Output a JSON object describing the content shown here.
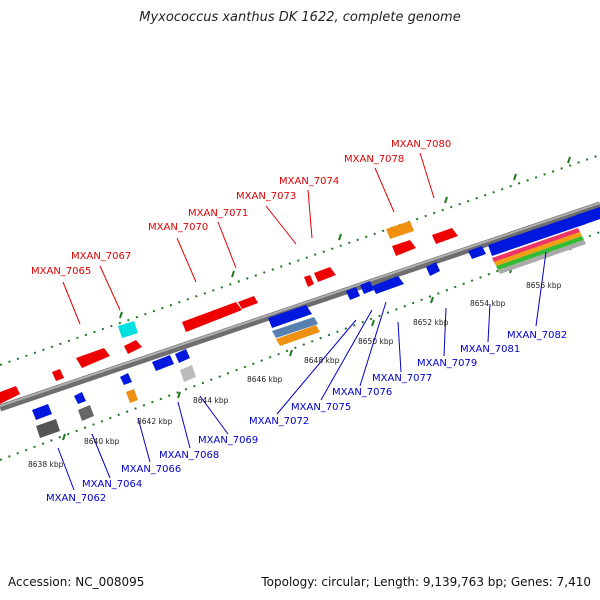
{
  "title": "Myxococcus xanthus DK 1622, complete genome",
  "footer": {
    "accession": "Accession: NC_008095",
    "topology": "Topology: circular; Length: 9,139,763 bp; Genes: 7,410"
  },
  "colors": {
    "top_label": "#e00000",
    "bottom_label": "#0000cc",
    "forward_gene": "#ee0000",
    "reverse_gene": "#0018dd",
    "backbone": "#8a8a8a",
    "tick": "#1f7a1f"
  },
  "top_labels": [
    "MXAN_7065",
    "MXAN_7067",
    "MXAN_7070",
    "MXAN_7071",
    "MXAN_7073",
    "MXAN_7074",
    "MXAN_7078",
    "MXAN_7080"
  ],
  "bottom_labels": [
    "MXAN_7062",
    "MXAN_7064",
    "MXAN_7066",
    "MXAN_7068",
    "MXAN_7069",
    "MXAN_7072",
    "MXAN_7075",
    "MXAN_7076",
    "MXAN_7077",
    "MXAN_7079",
    "MXAN_7081",
    "MXAN_7082"
  ],
  "kbp_labels": [
    "8638 kbp",
    "8640 kbp",
    "8642 kbp",
    "8644 kbp",
    "8646 kbp",
    "8648 kbp",
    "8650 kbp",
    "8652 kbp",
    "8654 kbp",
    "8656 kbp"
  ]
}
